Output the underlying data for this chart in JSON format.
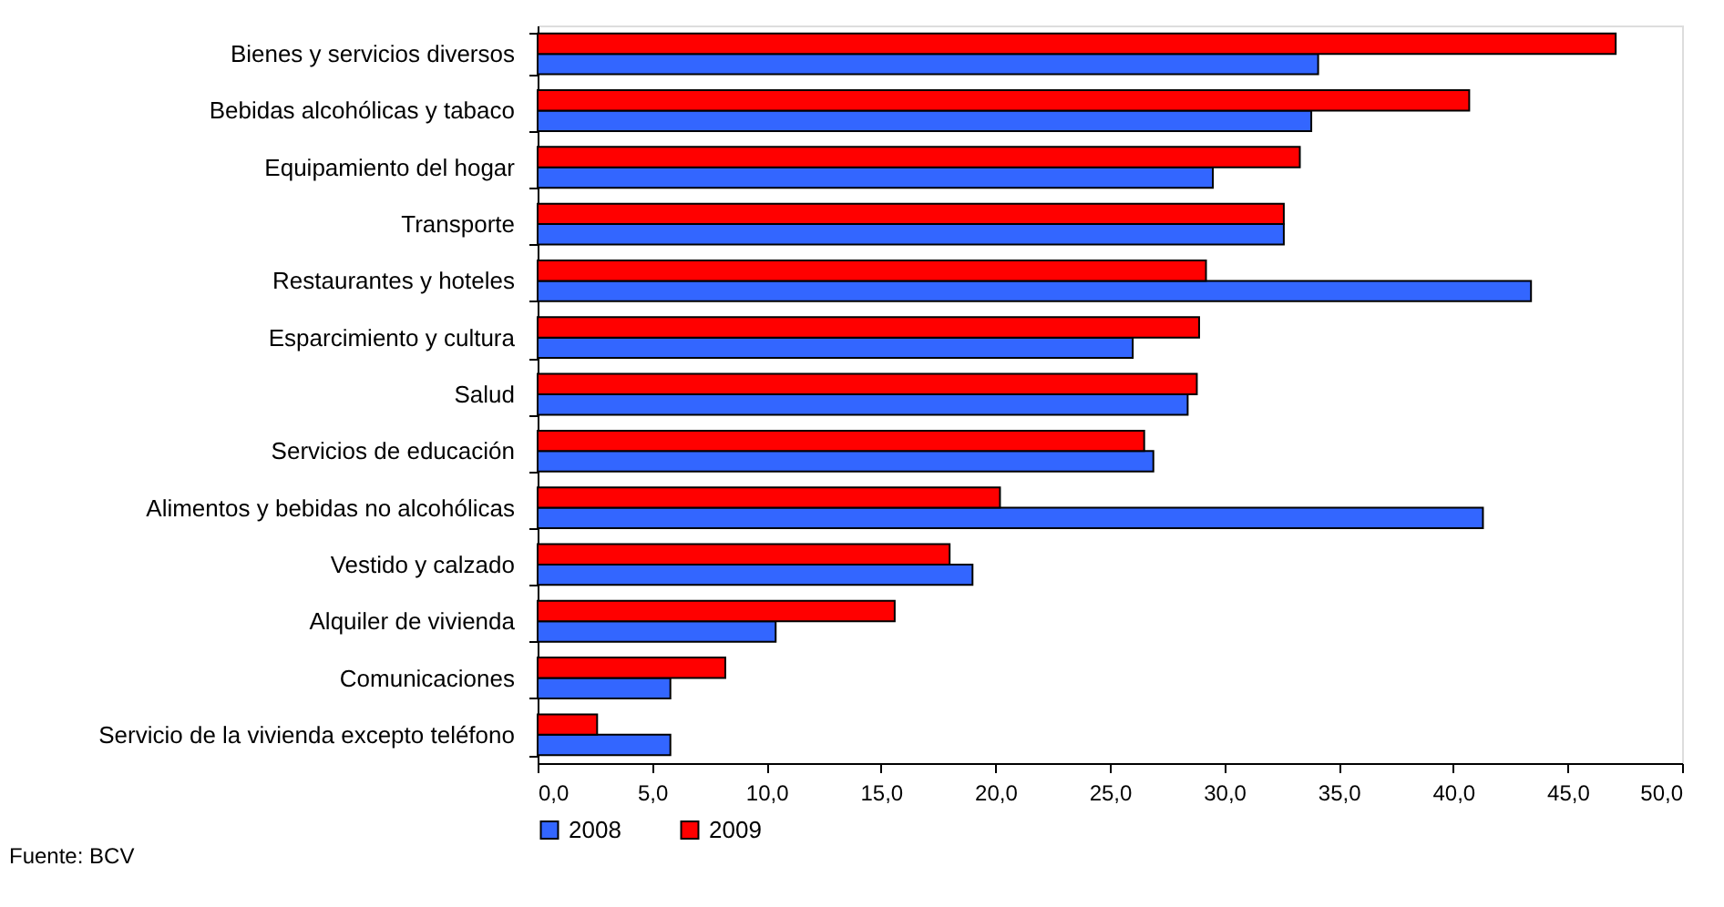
{
  "chart_data": {
    "type": "bar",
    "orientation": "horizontal",
    "categories": [
      "Bienes y servicios diversos",
      "Bebidas alcohólicas y tabaco",
      "Equipamiento del hogar",
      "Transporte",
      "Restaurantes y hoteles",
      "Esparcimiento y cultura",
      "Salud",
      "Servicios de educación",
      "Alimentos y bebidas no alcohólicas",
      "Vestido y calzado",
      "Alquiler de vivienda",
      "Comunicaciones",
      "Servicio de la vivienda excepto teléfono"
    ],
    "series": [
      {
        "name": "2008",
        "color": "#3366ff",
        "values": [
          34.1,
          33.8,
          29.5,
          32.6,
          43.4,
          26.0,
          28.4,
          26.9,
          41.3,
          19.0,
          10.4,
          5.8,
          5.8
        ]
      },
      {
        "name": "2009",
        "color": "#ff0000",
        "values": [
          47.1,
          40.7,
          33.3,
          32.6,
          29.2,
          28.9,
          28.8,
          26.5,
          20.2,
          18.0,
          15.6,
          8.2,
          2.6
        ]
      }
    ],
    "xlim": [
      0,
      50
    ],
    "xticks": [
      {
        "value": 0,
        "label": "0,0"
      },
      {
        "value": 5,
        "label": "5,0"
      },
      {
        "value": 10,
        "label": "10,0"
      },
      {
        "value": 15,
        "label": "15,0"
      },
      {
        "value": 20,
        "label": "20,0"
      },
      {
        "value": 25,
        "label": "25,0"
      },
      {
        "value": 30,
        "label": "30,0"
      },
      {
        "value": 35,
        "label": "35,0"
      },
      {
        "value": 40,
        "label": "40,0"
      },
      {
        "value": 45,
        "label": "45,0"
      },
      {
        "value": 50,
        "label": "50,0"
      }
    ],
    "legend": "bottom",
    "grid": false,
    "annotations": [
      "Fuente: BCV"
    ]
  }
}
